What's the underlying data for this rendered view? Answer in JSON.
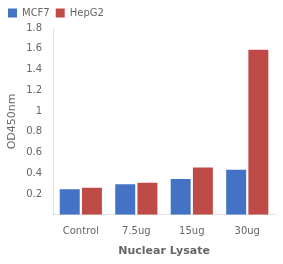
{
  "chart_data": {
    "type": "bar",
    "categories": [
      "Control",
      "7.5ug",
      "15ug",
      "30ug"
    ],
    "series": [
      {
        "name": "MCF7",
        "color": "#4472C4",
        "values": [
          0.245,
          0.295,
          0.345,
          0.435
        ]
      },
      {
        "name": "HepG2",
        "color": "#BE4B48",
        "values": [
          0.26,
          0.31,
          0.455,
          1.59
        ]
      }
    ],
    "xlabel": "Nuclear Lysate",
    "ylabel": "OD450nm",
    "ylim": [
      0,
      1.8
    ],
    "yticks": [
      {
        "value": 0,
        "label": ""
      },
      0.2,
      0.4,
      0.6,
      0.8,
      1,
      1.2,
      1.4,
      1.6,
      1.8
    ],
    "grid": false,
    "legend": "upper left"
  }
}
